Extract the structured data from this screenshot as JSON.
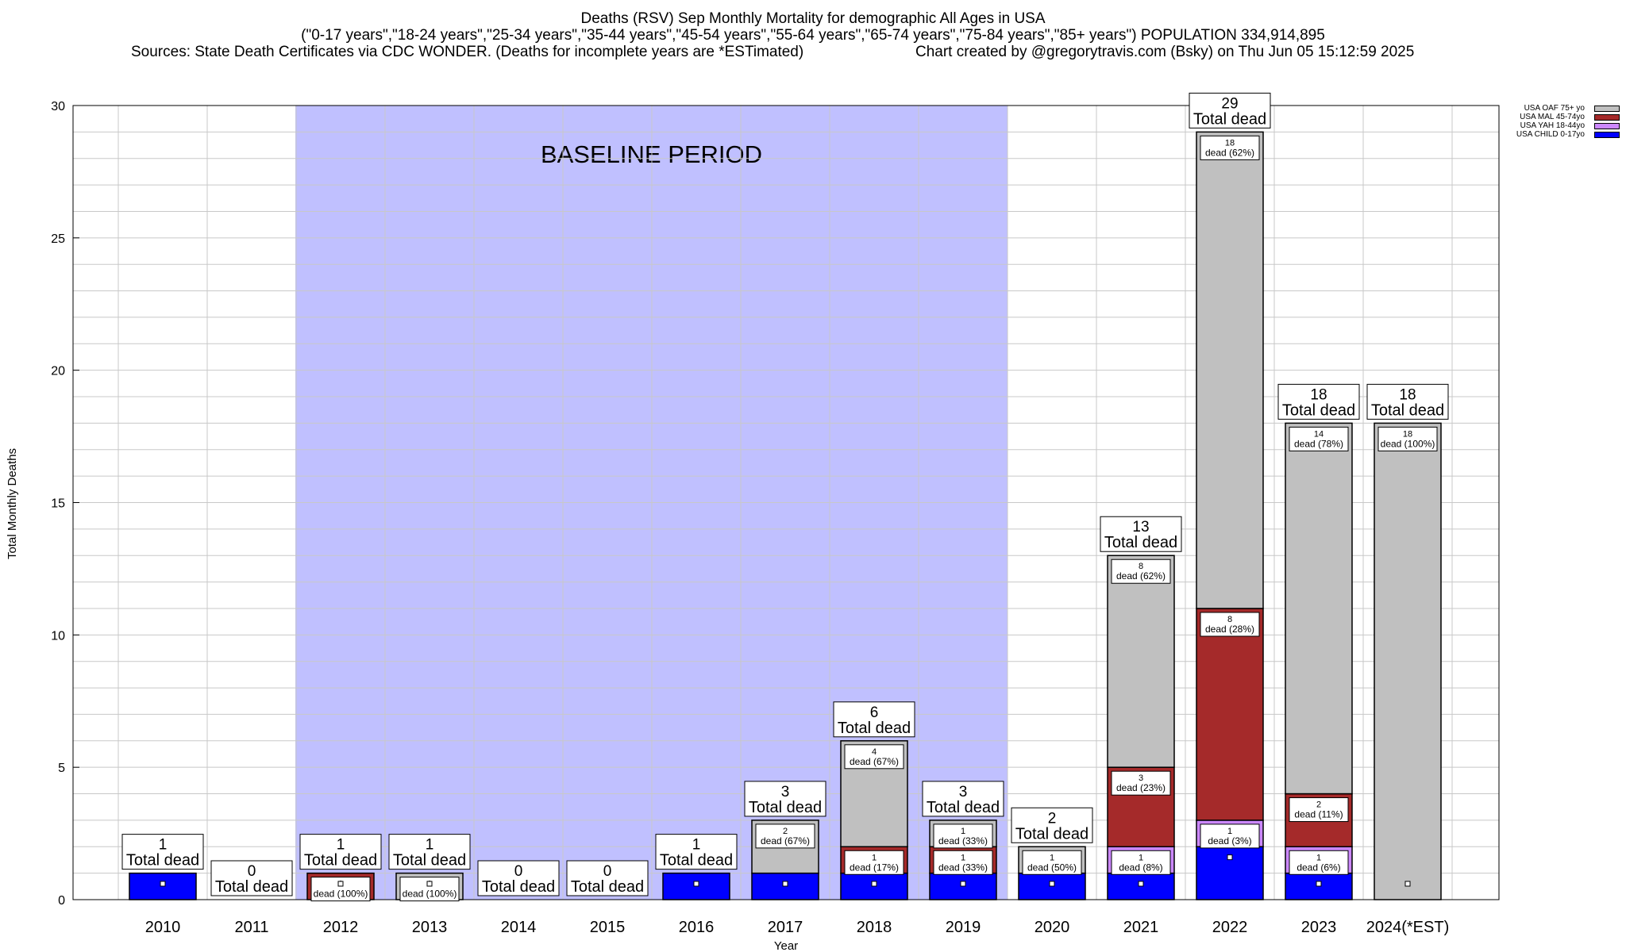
{
  "title": {
    "line1": "Deaths (RSV) Sep Monthly Mortality for demographic All Ages in USA",
    "line2": "(\"0-17 years\",\"18-24 years\",\"25-34 years\",\"35-44 years\",\"45-54 years\",\"55-64 years\",\"65-74 years\",\"75-84 years\",\"85+ years\") POPULATION 334,914,895",
    "line3_sources": "Sources: State Death Certificates via CDC WONDER. (Deaths for incomplete years are *ESTimated)",
    "line3_credit": "Chart created by @gregorytravis.com (Bsky) on Thu Jun 05 15:12:59 2025"
  },
  "chart_data": {
    "type": "bar",
    "stacked": true,
    "title": "Deaths (RSV) Sep Monthly Mortality for demographic All Ages in USA",
    "xlabel": "Year",
    "ylabel": "Total Monthly Deaths",
    "ylim": [
      0,
      30
    ],
    "yticks": [
      0,
      5,
      10,
      15,
      20,
      25,
      30
    ],
    "grid": true,
    "legend_position": "top-right",
    "categories": [
      "2010",
      "2011",
      "2012",
      "2013",
      "2014",
      "2015",
      "2016",
      "2017",
      "2018",
      "2019",
      "2020",
      "2021",
      "2022",
      "2023",
      "2024(*EST)"
    ],
    "series": [
      {
        "name": "USA CHILD 0-17yo",
        "color": "#0000ff",
        "values": [
          1,
          0,
          0,
          0,
          0,
          0,
          1,
          1,
          1,
          1,
          1,
          1,
          2,
          1,
          0
        ]
      },
      {
        "name": "USA YAH 18-44yo",
        "color": "#cc88ff",
        "values": [
          0,
          0,
          0,
          0,
          0,
          0,
          0,
          0,
          0,
          0,
          0,
          1,
          1,
          1,
          0
        ]
      },
      {
        "name": "USA MAL 45-74yo",
        "color": "#a52a2a",
        "values": [
          0,
          0,
          1,
          0,
          0,
          0,
          0,
          0,
          1,
          1,
          0,
          3,
          8,
          2,
          0
        ]
      },
      {
        "name": "USA OAF 75+ yo",
        "color": "#c0c0c0",
        "values": [
          0,
          0,
          0,
          1,
          0,
          0,
          0,
          2,
          4,
          1,
          1,
          8,
          18,
          14,
          18
        ]
      }
    ],
    "totals": [
      1,
      0,
      1,
      1,
      0,
      0,
      1,
      3,
      6,
      3,
      2,
      13,
      29,
      18,
      18
    ],
    "total_label_suffix": "Total dead",
    "segment_labels": [
      [],
      [],
      [
        {
          "series": 2,
          "count": "1",
          "text": "dead (100%)"
        }
      ],
      [
        {
          "series": 3,
          "count": "1",
          "text": "dead (100%)"
        }
      ],
      [],
      [],
      [],
      [
        {
          "series": 3,
          "count": "2",
          "text": "dead (67%)"
        }
      ],
      [
        {
          "series": 2,
          "count": "1",
          "text": "dead (17%)"
        },
        {
          "series": 3,
          "count": "4",
          "text": "dead (67%)"
        }
      ],
      [
        {
          "series": 2,
          "count": "1",
          "text": "dead (33%)"
        },
        {
          "series": 3,
          "count": "1",
          "text": "dead (33%)"
        }
      ],
      [
        {
          "series": 3,
          "count": "1",
          "text": "dead (50%)"
        }
      ],
      [
        {
          "series": 1,
          "count": "1",
          "text": "dead (8%)"
        },
        {
          "series": 2,
          "count": "3",
          "text": "dead (23%)"
        },
        {
          "series": 3,
          "count": "8",
          "text": "dead (62%)"
        }
      ],
      [
        {
          "series": 1,
          "count": "1",
          "text": "dead (3%)"
        },
        {
          "series": 2,
          "count": "8",
          "text": "dead (28%)"
        },
        {
          "series": 3,
          "count": "18",
          "text": "dead (62%)"
        }
      ],
      [
        {
          "series": 1,
          "count": "1",
          "text": "dead (6%)"
        },
        {
          "series": 2,
          "count": "2",
          "text": "dead (11%)"
        },
        {
          "series": 3,
          "count": "14",
          "text": "dead (78%)"
        }
      ],
      [
        {
          "series": 3,
          "count": "18",
          "text": "dead (100%)"
        }
      ]
    ],
    "baseline": {
      "label": "BASELINE PERIOD",
      "start_category": "2012",
      "end_category": "2019",
      "color": "#c0c0ff"
    }
  }
}
